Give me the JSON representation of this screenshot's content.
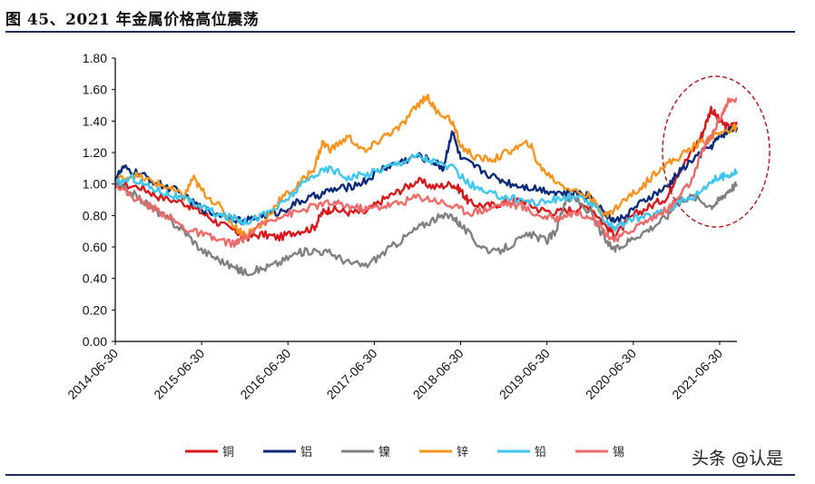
{
  "title": "图 45、2021 年金属价格高位震荡",
  "watermark": "头条 @认是",
  "chart_data": {
    "type": "line",
    "ylim": [
      0,
      1.8
    ],
    "yticks": [
      "0.00",
      "0.20",
      "0.40",
      "0.60",
      "0.80",
      "1.00",
      "1.20",
      "1.40",
      "1.60",
      "1.80"
    ],
    "xticks": [
      "2014-06-30",
      "2015-06-30",
      "2016-06-30",
      "2017-06-30",
      "2018-06-30",
      "2019-06-30",
      "2020-06-30",
      "2021-06-30"
    ],
    "x_range": [
      2014.5,
      2021.7
    ],
    "grid": false,
    "legend_position": "bottom",
    "annotation": "dashed red ellipse highlighting 2021 highs",
    "series": [
      {
        "name": "铜",
        "color": "#d7191c",
        "points": [
          [
            2014.5,
            1.0
          ],
          [
            2014.8,
            0.98
          ],
          [
            2015.0,
            0.92
          ],
          [
            2015.3,
            0.88
          ],
          [
            2015.5,
            0.82
          ],
          [
            2015.7,
            0.75
          ],
          [
            2015.9,
            0.7
          ],
          [
            2016.0,
            0.66
          ],
          [
            2016.2,
            0.68
          ],
          [
            2016.4,
            0.66
          ],
          [
            2016.6,
            0.7
          ],
          [
            2016.8,
            0.72
          ],
          [
            2016.9,
            0.82
          ],
          [
            2017.0,
            0.84
          ],
          [
            2017.2,
            0.82
          ],
          [
            2017.4,
            0.82
          ],
          [
            2017.6,
            0.9
          ],
          [
            2017.8,
            0.96
          ],
          [
            2018.0,
            1.02
          ],
          [
            2018.2,
            0.98
          ],
          [
            2018.4,
            1.0
          ],
          [
            2018.5,
            0.96
          ],
          [
            2018.6,
            0.88
          ],
          [
            2018.8,
            0.86
          ],
          [
            2019.0,
            0.88
          ],
          [
            2019.2,
            0.9
          ],
          [
            2019.4,
            0.84
          ],
          [
            2019.6,
            0.82
          ],
          [
            2019.8,
            0.84
          ],
          [
            2020.0,
            0.86
          ],
          [
            2020.2,
            0.72
          ],
          [
            2020.3,
            0.68
          ],
          [
            2020.5,
            0.8
          ],
          [
            2020.7,
            0.86
          ],
          [
            2020.9,
            0.92
          ],
          [
            2021.0,
            1.06
          ],
          [
            2021.2,
            1.22
          ],
          [
            2021.3,
            1.32
          ],
          [
            2021.4,
            1.48
          ],
          [
            2021.5,
            1.4
          ],
          [
            2021.6,
            1.36
          ],
          [
            2021.7,
            1.38
          ]
        ]
      },
      {
        "name": "铝",
        "color": "#0b2a7a",
        "points": [
          [
            2014.5,
            1.04
          ],
          [
            2014.6,
            1.1
          ],
          [
            2014.8,
            1.06
          ],
          [
            2015.0,
            1.0
          ],
          [
            2015.2,
            0.96
          ],
          [
            2015.4,
            0.88
          ],
          [
            2015.6,
            0.82
          ],
          [
            2015.8,
            0.8
          ],
          [
            2016.0,
            0.76
          ],
          [
            2016.2,
            0.8
          ],
          [
            2016.4,
            0.82
          ],
          [
            2016.6,
            0.88
          ],
          [
            2016.8,
            0.92
          ],
          [
            2017.0,
            0.96
          ],
          [
            2017.2,
            0.98
          ],
          [
            2017.4,
            1.02
          ],
          [
            2017.6,
            1.1
          ],
          [
            2017.8,
            1.14
          ],
          [
            2018.0,
            1.18
          ],
          [
            2018.2,
            1.14
          ],
          [
            2018.3,
            1.1
          ],
          [
            2018.4,
            1.34
          ],
          [
            2018.5,
            1.16
          ],
          [
            2018.7,
            1.1
          ],
          [
            2018.9,
            1.04
          ],
          [
            2019.1,
            1.0
          ],
          [
            2019.3,
            0.98
          ],
          [
            2019.5,
            0.96
          ],
          [
            2019.7,
            0.94
          ],
          [
            2019.9,
            0.94
          ],
          [
            2020.0,
            0.92
          ],
          [
            2020.2,
            0.8
          ],
          [
            2020.3,
            0.76
          ],
          [
            2020.5,
            0.84
          ],
          [
            2020.7,
            0.92
          ],
          [
            2020.9,
            0.98
          ],
          [
            2021.0,
            1.06
          ],
          [
            2021.2,
            1.16
          ],
          [
            2021.4,
            1.24
          ],
          [
            2021.5,
            1.3
          ],
          [
            2021.6,
            1.34
          ],
          [
            2021.7,
            1.36
          ]
        ]
      },
      {
        "name": "镍",
        "color": "#808080",
        "points": [
          [
            2014.5,
            1.0
          ],
          [
            2014.7,
            0.94
          ],
          [
            2014.9,
            0.86
          ],
          [
            2015.1,
            0.78
          ],
          [
            2015.3,
            0.7
          ],
          [
            2015.5,
            0.58
          ],
          [
            2015.7,
            0.52
          ],
          [
            2015.9,
            0.46
          ],
          [
            2016.0,
            0.44
          ],
          [
            2016.2,
            0.46
          ],
          [
            2016.4,
            0.5
          ],
          [
            2016.6,
            0.56
          ],
          [
            2016.8,
            0.58
          ],
          [
            2017.0,
            0.56
          ],
          [
            2017.2,
            0.5
          ],
          [
            2017.4,
            0.48
          ],
          [
            2017.6,
            0.56
          ],
          [
            2017.8,
            0.64
          ],
          [
            2018.0,
            0.72
          ],
          [
            2018.2,
            0.78
          ],
          [
            2018.4,
            0.8
          ],
          [
            2018.5,
            0.74
          ],
          [
            2018.7,
            0.62
          ],
          [
            2018.9,
            0.56
          ],
          [
            2019.1,
            0.62
          ],
          [
            2019.3,
            0.68
          ],
          [
            2019.5,
            0.64
          ],
          [
            2019.6,
            0.7
          ],
          [
            2019.7,
            0.88
          ],
          [
            2019.8,
            0.92
          ],
          [
            2020.0,
            0.82
          ],
          [
            2020.2,
            0.62
          ],
          [
            2020.3,
            0.58
          ],
          [
            2020.5,
            0.66
          ],
          [
            2020.7,
            0.72
          ],
          [
            2020.9,
            0.8
          ],
          [
            2021.0,
            0.9
          ],
          [
            2021.2,
            0.92
          ],
          [
            2021.4,
            0.86
          ],
          [
            2021.5,
            0.9
          ],
          [
            2021.6,
            0.96
          ],
          [
            2021.7,
            1.0
          ]
        ]
      },
      {
        "name": "锌",
        "color": "#f7941d",
        "points": [
          [
            2014.5,
            1.02
          ],
          [
            2014.7,
            1.06
          ],
          [
            2014.9,
            1.02
          ],
          [
            2015.1,
            0.98
          ],
          [
            2015.3,
            0.92
          ],
          [
            2015.4,
            1.04
          ],
          [
            2015.5,
            0.96
          ],
          [
            2015.7,
            0.86
          ],
          [
            2015.9,
            0.72
          ],
          [
            2016.0,
            0.68
          ],
          [
            2016.2,
            0.74
          ],
          [
            2016.4,
            0.9
          ],
          [
            2016.6,
            0.98
          ],
          [
            2016.8,
            1.1
          ],
          [
            2016.9,
            1.26
          ],
          [
            2017.0,
            1.22
          ],
          [
            2017.2,
            1.3
          ],
          [
            2017.4,
            1.2
          ],
          [
            2017.6,
            1.3
          ],
          [
            2017.8,
            1.36
          ],
          [
            2018.0,
            1.5
          ],
          [
            2018.1,
            1.56
          ],
          [
            2018.2,
            1.48
          ],
          [
            2018.4,
            1.4
          ],
          [
            2018.5,
            1.24
          ],
          [
            2018.7,
            1.16
          ],
          [
            2018.9,
            1.16
          ],
          [
            2019.1,
            1.22
          ],
          [
            2019.3,
            1.26
          ],
          [
            2019.4,
            1.12
          ],
          [
            2019.6,
            1.02
          ],
          [
            2019.8,
            0.96
          ],
          [
            2020.0,
            0.92
          ],
          [
            2020.1,
            0.84
          ],
          [
            2020.2,
            0.8
          ],
          [
            2020.4,
            0.9
          ],
          [
            2020.6,
            0.98
          ],
          [
            2020.8,
            1.1
          ],
          [
            2021.0,
            1.16
          ],
          [
            2021.2,
            1.24
          ],
          [
            2021.4,
            1.3
          ],
          [
            2021.6,
            1.34
          ],
          [
            2021.7,
            1.36
          ]
        ]
      },
      {
        "name": "铅",
        "color": "#3fc6ef",
        "points": [
          [
            2014.5,
            1.0
          ],
          [
            2014.7,
            1.04
          ],
          [
            2014.9,
            0.98
          ],
          [
            2015.1,
            0.94
          ],
          [
            2015.3,
            0.9
          ],
          [
            2015.5,
            0.86
          ],
          [
            2015.7,
            0.8
          ],
          [
            2015.9,
            0.78
          ],
          [
            2016.0,
            0.76
          ],
          [
            2016.2,
            0.8
          ],
          [
            2016.4,
            0.86
          ],
          [
            2016.6,
            0.96
          ],
          [
            2016.8,
            1.06
          ],
          [
            2017.0,
            1.1
          ],
          [
            2017.2,
            1.04
          ],
          [
            2017.4,
            1.06
          ],
          [
            2017.6,
            1.1
          ],
          [
            2017.8,
            1.14
          ],
          [
            2018.0,
            1.18
          ],
          [
            2018.2,
            1.14
          ],
          [
            2018.4,
            1.1
          ],
          [
            2018.6,
            1.0
          ],
          [
            2018.8,
            0.94
          ],
          [
            2019.0,
            0.92
          ],
          [
            2019.2,
            0.9
          ],
          [
            2019.4,
            0.88
          ],
          [
            2019.6,
            0.9
          ],
          [
            2019.8,
            0.92
          ],
          [
            2020.0,
            0.88
          ],
          [
            2020.2,
            0.76
          ],
          [
            2020.3,
            0.72
          ],
          [
            2020.5,
            0.78
          ],
          [
            2020.7,
            0.8
          ],
          [
            2020.9,
            0.84
          ],
          [
            2021.0,
            0.88
          ],
          [
            2021.2,
            0.92
          ],
          [
            2021.4,
            1.02
          ],
          [
            2021.5,
            1.04
          ],
          [
            2021.6,
            1.06
          ],
          [
            2021.7,
            1.08
          ]
        ]
      },
      {
        "name": "锡",
        "color": "#ef6a6a",
        "points": [
          [
            2014.5,
            1.0
          ],
          [
            2014.7,
            0.92
          ],
          [
            2014.9,
            0.86
          ],
          [
            2015.1,
            0.8
          ],
          [
            2015.3,
            0.72
          ],
          [
            2015.5,
            0.68
          ],
          [
            2015.7,
            0.64
          ],
          [
            2015.9,
            0.62
          ],
          [
            2016.0,
            0.66
          ],
          [
            2016.2,
            0.74
          ],
          [
            2016.4,
            0.8
          ],
          [
            2016.6,
            0.82
          ],
          [
            2016.8,
            0.86
          ],
          [
            2017.0,
            0.88
          ],
          [
            2017.2,
            0.86
          ],
          [
            2017.4,
            0.84
          ],
          [
            2017.6,
            0.86
          ],
          [
            2017.8,
            0.88
          ],
          [
            2018.0,
            0.92
          ],
          [
            2018.2,
            0.9
          ],
          [
            2018.4,
            0.86
          ],
          [
            2018.6,
            0.82
          ],
          [
            2018.8,
            0.84
          ],
          [
            2019.0,
            0.88
          ],
          [
            2019.2,
            0.86
          ],
          [
            2019.4,
            0.8
          ],
          [
            2019.6,
            0.78
          ],
          [
            2019.8,
            0.82
          ],
          [
            2020.0,
            0.8
          ],
          [
            2020.2,
            0.68
          ],
          [
            2020.3,
            0.64
          ],
          [
            2020.5,
            0.72
          ],
          [
            2020.7,
            0.78
          ],
          [
            2020.9,
            0.84
          ],
          [
            2021.0,
            0.9
          ],
          [
            2021.2,
            1.04
          ],
          [
            2021.3,
            1.22
          ],
          [
            2021.4,
            1.3
          ],
          [
            2021.5,
            1.42
          ],
          [
            2021.6,
            1.52
          ],
          [
            2021.7,
            1.54
          ]
        ]
      }
    ]
  }
}
